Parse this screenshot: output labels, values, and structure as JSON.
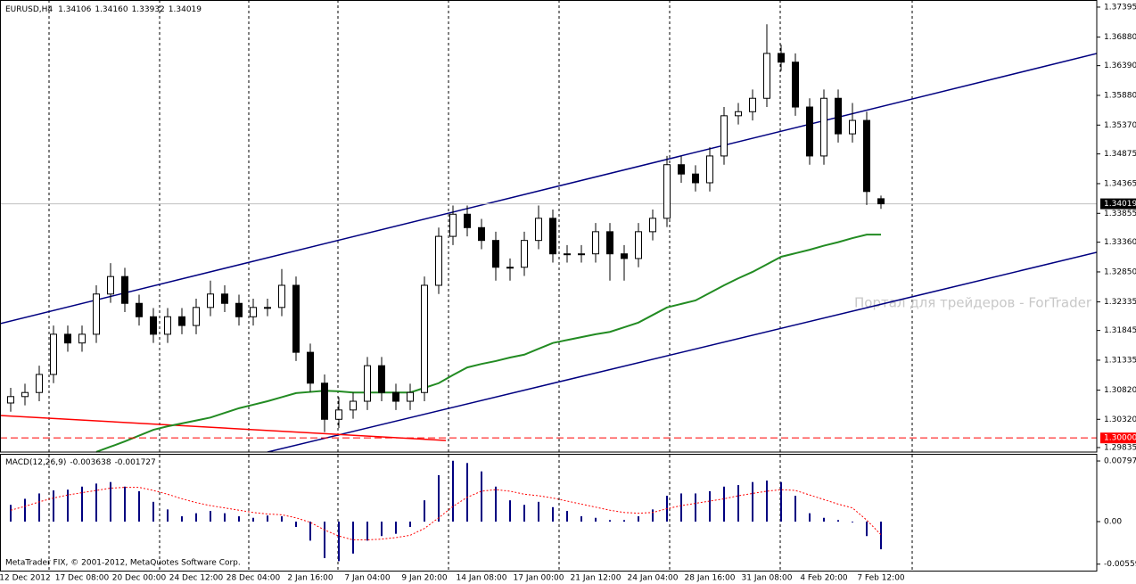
{
  "chart_data": [
    {
      "type": "candlestick",
      "title": "EURUSD,H4",
      "quote_labels": [
        "1.34106",
        "1.34160",
        "1.33932",
        "1.34019"
      ],
      "categories": [
        null,
        "12 Dec 2012",
        null,
        null,
        null,
        "17 Dec 08:00",
        null,
        null,
        null,
        "20 Dec 00:00",
        null,
        null,
        null,
        "24 Dec 12:00",
        null,
        null,
        null,
        "28 Dec 04:00",
        null,
        null,
        null,
        "2 Jan 16:00",
        null,
        null,
        null,
        "7 Jan 04:00",
        null,
        null,
        null,
        "9 Jan 20:00",
        null,
        null,
        null,
        "14 Jan 08:00",
        null,
        null,
        null,
        "17 Jan 00:00",
        null,
        null,
        null,
        "21 Jan 12:00",
        null,
        null,
        null,
        "24 Jan 04:00",
        null,
        null,
        null,
        "28 Jan 16:00",
        null,
        null,
        null,
        "31 Jan 08:00",
        null,
        null,
        null,
        "4 Feb 20:00",
        null,
        null,
        null,
        "7 Feb 12:00"
      ],
      "open": [
        1.306,
        1.3071,
        1.3078,
        1.3109,
        1.3178,
        1.3163,
        1.3178,
        1.3247,
        1.3277,
        1.3231,
        1.3208,
        1.3178,
        1.3208,
        1.3193,
        1.3224,
        1.3247,
        1.3231,
        1.3208,
        1.3224,
        1.3224,
        1.3262,
        1.3147,
        1.3094,
        1.3032,
        1.3048,
        1.3063,
        1.3124,
        1.3078,
        1.3063,
        1.3078,
        1.3262,
        1.3346,
        1.3384,
        1.3361,
        1.3339,
        1.3293,
        1.3293,
        1.3339,
        1.3377,
        1.3316,
        1.3316,
        1.3316,
        1.3354,
        1.3316,
        1.3308,
        1.3354,
        1.3377,
        1.3469,
        1.3453,
        1.3438,
        1.3484,
        1.3553,
        1.356,
        1.3583,
        1.366,
        1.3645,
        1.3568,
        1.3484,
        1.3583,
        1.3522,
        1.3545,
        1.34106
      ],
      "high": [
        1.3086,
        1.3093,
        1.3124,
        1.3193,
        1.3193,
        1.3193,
        1.3262,
        1.33,
        1.3292,
        1.3246,
        1.3223,
        1.3223,
        1.3223,
        1.3239,
        1.327,
        1.3262,
        1.3246,
        1.3239,
        1.3239,
        1.329,
        1.3277,
        1.3162,
        1.3109,
        1.307,
        1.3078,
        1.3139,
        1.3139,
        1.3093,
        1.3093,
        1.3277,
        1.3361,
        1.3399,
        1.3399,
        1.3376,
        1.3354,
        1.3308,
        1.3354,
        1.3399,
        1.3392,
        1.3331,
        1.3331,
        1.3369,
        1.3369,
        1.3331,
        1.3369,
        1.3392,
        1.3484,
        1.3484,
        1.3468,
        1.3499,
        1.3568,
        1.3575,
        1.3598,
        1.371,
        1.3675,
        1.366,
        1.3583,
        1.3598,
        1.3598,
        1.3575,
        1.356,
        1.3416
      ],
      "low": [
        1.3045,
        1.3056,
        1.3063,
        1.3094,
        1.3148,
        1.3148,
        1.3163,
        1.3232,
        1.3216,
        1.3193,
        1.3163,
        1.3163,
        1.3178,
        1.3178,
        1.3209,
        1.3216,
        1.3193,
        1.3193,
        1.3209,
        1.3209,
        1.3132,
        1.3079,
        1.301,
        1.3017,
        1.3033,
        1.3048,
        1.3063,
        1.3048,
        1.3048,
        1.3063,
        1.3247,
        1.3331,
        1.3346,
        1.3324,
        1.327,
        1.327,
        1.3278,
        1.3324,
        1.3301,
        1.3301,
        1.3301,
        1.3301,
        1.327,
        1.327,
        1.3293,
        1.3339,
        1.3362,
        1.3438,
        1.3423,
        1.3423,
        1.3469,
        1.3538,
        1.3545,
        1.3568,
        1.363,
        1.3553,
        1.3469,
        1.3469,
        1.3507,
        1.3507,
        1.34,
        1.33932
      ],
      "close": [
        1.3071,
        1.3078,
        1.3109,
        1.3178,
        1.3163,
        1.3178,
        1.3247,
        1.3277,
        1.3231,
        1.3208,
        1.3178,
        1.3208,
        1.3193,
        1.3224,
        1.3247,
        1.3231,
        1.3208,
        1.3224,
        1.3224,
        1.3262,
        1.3147,
        1.3094,
        1.3032,
        1.3048,
        1.3063,
        1.3124,
        1.3078,
        1.3063,
        1.3078,
        1.3262,
        1.3346,
        1.3384,
        1.3361,
        1.3339,
        1.3293,
        1.3293,
        1.3339,
        1.3377,
        1.3316,
        1.3316,
        1.3316,
        1.3354,
        1.3316,
        1.3308,
        1.3354,
        1.3377,
        1.3469,
        1.3453,
        1.3438,
        1.3484,
        1.3553,
        1.356,
        1.3583,
        1.366,
        1.3645,
        1.3568,
        1.3484,
        1.3583,
        1.3522,
        1.3545,
        1.3423,
        1.34019
      ],
      "ma": {
        "color": "#228b22",
        "values": [
          null,
          null,
          null,
          null,
          null,
          null,
          1.2976,
          1.2985,
          1.2994,
          1.3004,
          1.3014,
          1.302,
          1.3025,
          1.303,
          1.3035,
          1.3043,
          1.3051,
          1.3057,
          1.3063,
          1.307,
          1.3077,
          1.3079,
          1.3081,
          1.308,
          1.3078,
          1.3078,
          1.3078,
          1.3078,
          1.3078,
          1.3086,
          1.3094,
          1.3108,
          1.3121,
          1.3127,
          1.3132,
          1.3138,
          1.3143,
          1.3153,
          1.3163,
          1.3168,
          1.3173,
          1.3178,
          1.3182,
          1.319,
          1.3198,
          1.3211,
          1.3224,
          1.323,
          1.3236,
          1.3249,
          1.3262,
          1.3274,
          1.3285,
          1.3298,
          1.3311,
          1.3317,
          1.3323,
          1.333,
          1.3336,
          1.3343,
          1.3349,
          1.3349
        ]
      },
      "level": 1.3,
      "level_label": "1.30000",
      "level_color": "#ff0000",
      "ylim": [
        1.29758,
        1.37517
      ],
      "yticks": [
        {
          "value": 1.37395,
          "label": "1.37395"
        },
        {
          "value": 1.3688,
          "label": "1.36880"
        },
        {
          "value": 1.3639,
          "label": "1.36390"
        },
        {
          "value": 1.3588,
          "label": "1.35880"
        },
        {
          "value": 1.3537,
          "label": "1.35370"
        },
        {
          "value": 1.34875,
          "label": "1.34875"
        },
        {
          "value": 1.34365,
          "label": "1.34365"
        },
        {
          "value": 1.33855,
          "label": "1.33855"
        },
        {
          "value": 1.3336,
          "label": "1.33360"
        },
        {
          "value": 1.3285,
          "label": "1.32850"
        },
        {
          "value": 1.32335,
          "label": "1.32335"
        },
        {
          "value": 1.31845,
          "label": "1.31845"
        },
        {
          "value": 1.31335,
          "label": "1.31335"
        },
        {
          "value": 1.3082,
          "label": "1.30820"
        },
        {
          "value": 1.3032,
          "label": "1.30320"
        },
        {
          "value": 1.29835,
          "label": "1.29835"
        }
      ],
      "watermark": "Портал для трейдеров - ForTrader"
    },
    {
      "type": "macd",
      "title": "MACD(12,26,9)",
      "color": "#000080",
      "signal_color": "#ff0000",
      "values": [
        0.0022,
        0.003,
        0.0037,
        0.0041,
        0.0042,
        0.0046,
        0.005,
        0.0052,
        0.0046,
        0.004,
        0.0026,
        0.0016,
        0.0007,
        0.0011,
        0.0014,
        0.0011,
        0.0007,
        0.0005,
        0.0008,
        0.0007,
        -0.0007,
        -0.0025,
        -0.0048,
        -0.0052,
        -0.0042,
        -0.0025,
        -0.0019,
        -0.0016,
        -0.0007,
        0.0028,
        0.0061,
        0.008,
        0.0077,
        0.0066,
        0.0046,
        0.0028,
        0.0022,
        0.0026,
        0.0019,
        0.0014,
        0.0007,
        0.0005,
        0.0002,
        0.0002,
        0.0007,
        0.0016,
        0.0034,
        0.0037,
        0.0037,
        0.004,
        0.0046,
        0.0048,
        0.0052,
        0.0054,
        0.0052,
        0.0034,
        0.0011,
        0.0005,
        0.0002,
        -0.0001,
        -0.0019,
        -0.003638
      ],
      "signal": [
        0.0015,
        0.002,
        0.0026,
        0.0031,
        0.0035,
        0.0038,
        0.0041,
        0.0044,
        0.0045,
        0.0045,
        0.0041,
        0.0036,
        0.003,
        0.0025,
        0.0021,
        0.0018,
        0.0015,
        0.0012,
        0.001,
        0.0009,
        0.0005,
        -0.0001,
        -0.0011,
        -0.0019,
        -0.0024,
        -0.0024,
        -0.0023,
        -0.0021,
        -0.0018,
        -0.0009,
        0.0005,
        0.002,
        0.0032,
        0.004,
        0.0042,
        0.004,
        0.0036,
        0.0034,
        0.0031,
        0.0027,
        0.0023,
        0.0019,
        0.0015,
        0.0012,
        0.0011,
        0.0012,
        0.0017,
        0.0021,
        0.0024,
        0.0027,
        0.003,
        0.0034,
        0.0037,
        0.004,
        0.0042,
        0.0041,
        0.0035,
        0.0029,
        0.0023,
        0.0018,
        0.0002,
        -0.001727
      ],
      "ylim": [
        -0.00656,
        0.00891
      ],
      "yticks": [
        {
          "value": 0.00797,
          "label": "0.00797"
        },
        {
          "value": 0,
          "label": "0.00"
        },
        {
          "value": -0.00559,
          "label": "-0.00559"
        }
      ],
      "footer": "MetaTrader FIX, © 2001-2012, MetaQuotes Software Corp."
    }
  ]
}
